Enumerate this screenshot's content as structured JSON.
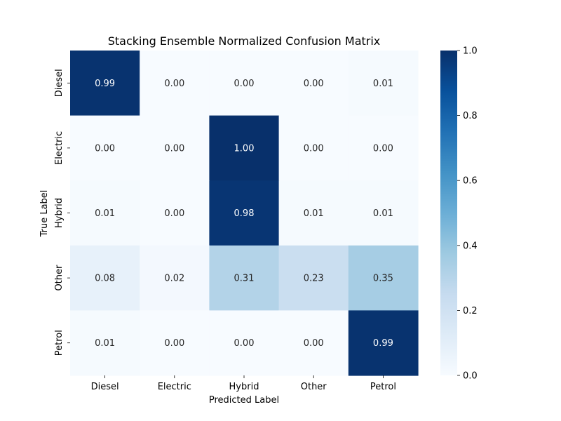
{
  "chart_data": {
    "type": "heatmap",
    "title": "Stacking Ensemble Normalized Confusion Matrix",
    "xlabel": "Predicted Label",
    "ylabel": "True Label",
    "x_categories": [
      "Diesel",
      "Electric",
      "Hybrid",
      "Other",
      "Petrol"
    ],
    "y_categories": [
      "Diesel",
      "Electric",
      "Hybrid",
      "Other",
      "Petrol"
    ],
    "values": [
      [
        0.99,
        0.0,
        0.0,
        0.0,
        0.01
      ],
      [
        0.0,
        0.0,
        1.0,
        0.0,
        0.0
      ],
      [
        0.01,
        0.0,
        0.98,
        0.01,
        0.01
      ],
      [
        0.08,
        0.02,
        0.31,
        0.23,
        0.35
      ],
      [
        0.01,
        0.0,
        0.0,
        0.0,
        0.99
      ]
    ],
    "value_format": "0.00",
    "colorbar": {
      "vmin": 0.0,
      "vmax": 1.0,
      "ticks": [
        0.0,
        0.2,
        0.4,
        0.6,
        0.8,
        1.0
      ],
      "tick_labels": [
        "0.0",
        "0.2",
        "0.4",
        "0.6",
        "0.8",
        "1.0"
      ],
      "colormap": "Blues"
    }
  }
}
